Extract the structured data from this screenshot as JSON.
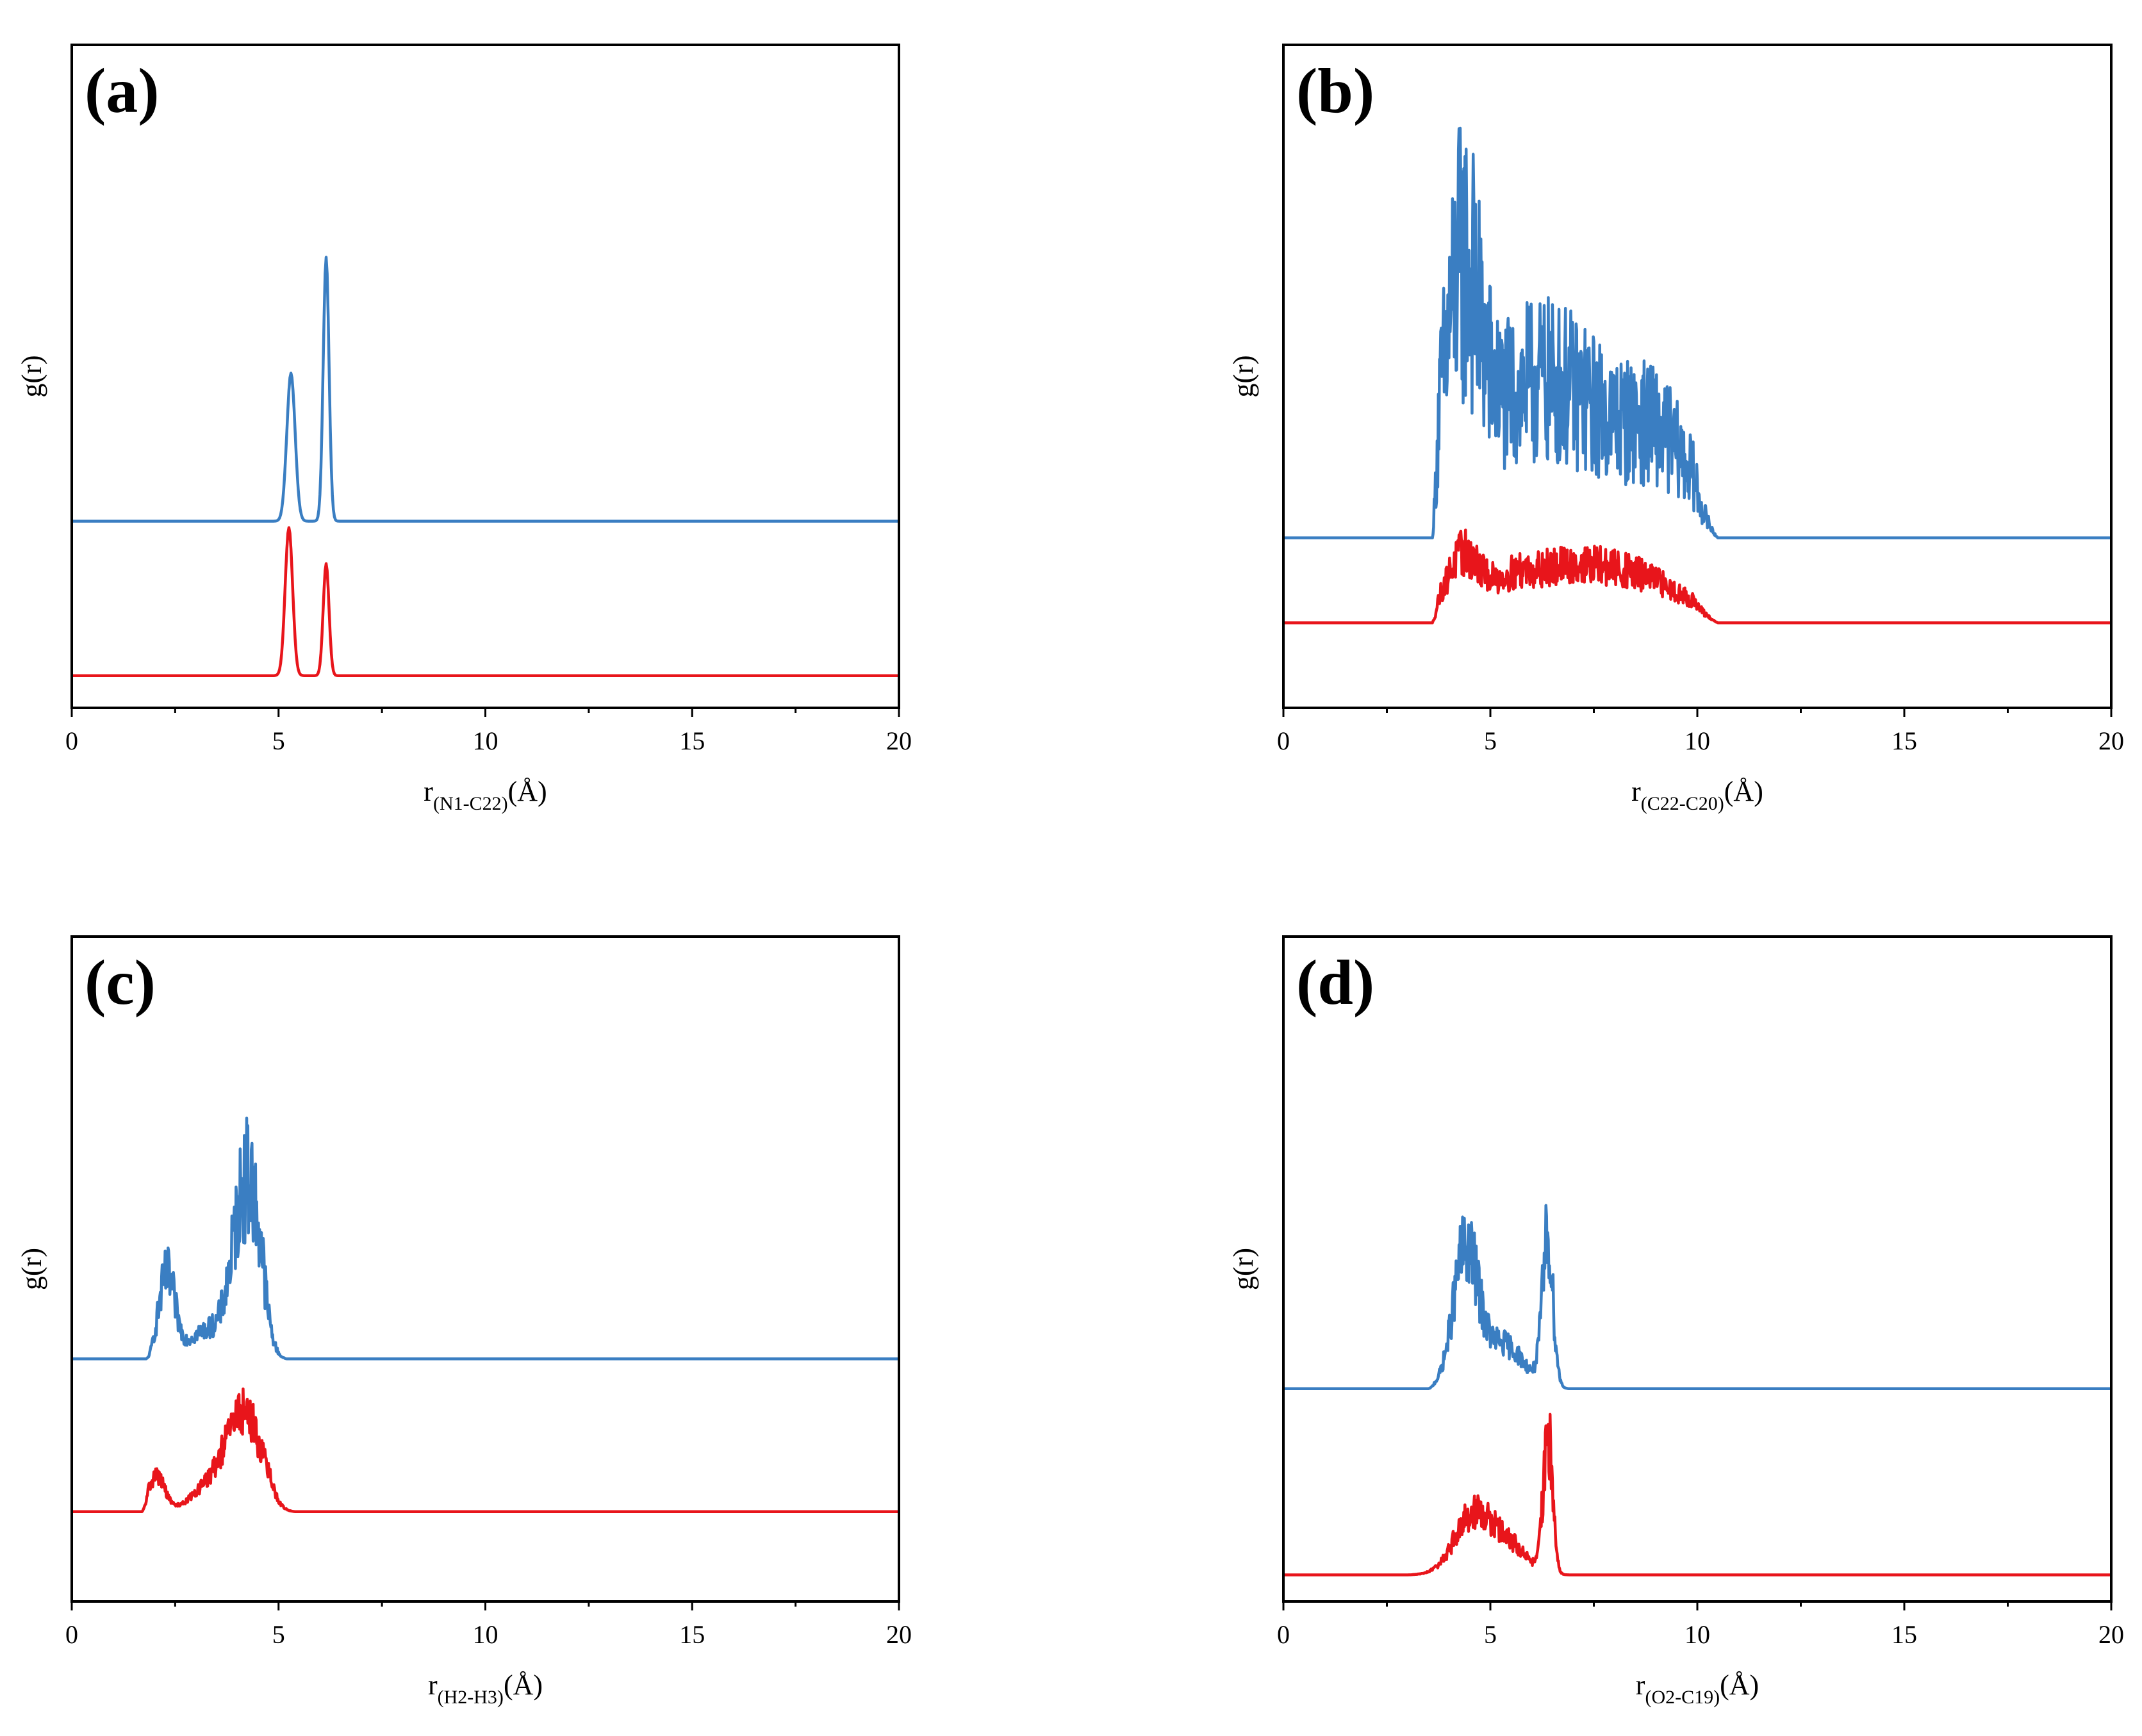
{
  "colors": {
    "blue": "#3A7EC2",
    "red": "#E8151B",
    "axis": "#000000"
  },
  "chart_data": [
    {
      "type": "line",
      "panel_label": "(a)",
      "title": "",
      "ylabel": "g(r)",
      "xlabel_main": "r",
      "xlabel_sub": "(N1-C22)",
      "xlabel_unit": "(Å)",
      "xlim": [
        0,
        20
      ],
      "x_ticks": [
        0,
        5,
        10,
        15,
        20
      ],
      "x_tick_labels": [
        "0",
        "5",
        "10",
        "15",
        "20"
      ],
      "ylim": [
        -0.25,
        4.9
      ],
      "grid": false,
      "legend": "none",
      "series": [
        {
          "name": "blue",
          "color": "#3A7EC2",
          "offset": 1.2,
          "range": [
            0,
            20
          ],
          "noise": 0,
          "peaks": [
            [
              5.3,
              1.15,
              0.1
            ],
            [
              6.15,
              2.05,
              0.07
            ]
          ]
        },
        {
          "name": "red",
          "color": "#E8151B",
          "offset": 0,
          "range": [
            0,
            20
          ],
          "noise": 0,
          "peaks": [
            [
              5.25,
              1.15,
              0.09
            ],
            [
              6.15,
              0.87,
              0.07
            ]
          ]
        }
      ]
    },
    {
      "type": "line",
      "panel_label": "(b)",
      "title": "",
      "ylabel": "g(r)",
      "xlabel_main": "r",
      "xlabel_sub": "(C22-C20)",
      "xlabel_unit": "(Å)",
      "xlim": [
        0,
        20
      ],
      "x_ticks": [
        0,
        5,
        10,
        15,
        20
      ],
      "x_tick_labels": [
        "0",
        "5",
        "10",
        "15",
        "20"
      ],
      "ylim": [
        -0.5,
        3.4
      ],
      "grid": false,
      "legend": "none",
      "series": [
        {
          "name": "blue",
          "color": "#3A7EC2",
          "offset": 0.5,
          "range": [
            3.6,
            10.5
          ],
          "noise": 0.55,
          "peaks": [
            [
              4.3,
              1.35,
              0.45
            ],
            [
              5.8,
              0.8,
              1.0
            ],
            [
              9.0,
              0.6,
              0.9
            ],
            [
              7.3,
              0.45,
              0.8
            ]
          ]
        },
        {
          "name": "red",
          "color": "#E8151B",
          "offset": 0,
          "range": [
            3.6,
            10.5
          ],
          "noise": 0.35,
          "peaks": [
            [
              4.3,
              0.35,
              0.4
            ],
            [
              5.5,
              0.22,
              0.7
            ],
            [
              8.3,
              0.28,
              1.3
            ],
            [
              6.8,
              0.15,
              0.8
            ]
          ]
        }
      ]
    },
    {
      "type": "line",
      "panel_label": "(c)",
      "title": "",
      "ylabel": "g(r)",
      "xlabel_main": "r",
      "xlabel_sub": "(H2-H3)",
      "xlabel_unit": "(Å)",
      "xlim": [
        0,
        20
      ],
      "x_ticks": [
        0,
        5,
        10,
        15,
        20
      ],
      "x_tick_labels": [
        "0",
        "5",
        "10",
        "15",
        "20"
      ],
      "ylim": [
        -0.5,
        3.2
      ],
      "grid": false,
      "legend": "none",
      "series": [
        {
          "name": "blue",
          "color": "#3A7EC2",
          "offset": 0.85,
          "range": [
            1.8,
            5.2
          ],
          "noise": 0.35,
          "peaks": [
            [
              2.3,
              0.45,
              0.2
            ],
            [
              4.25,
              1.0,
              0.35
            ],
            [
              3.2,
              0.15,
              0.4
            ]
          ]
        },
        {
          "name": "red",
          "color": "#E8151B",
          "offset": 0,
          "range": [
            1.7,
            5.4
          ],
          "noise": 0.25,
          "peaks": [
            [
              2.05,
              0.2,
              0.2
            ],
            [
              4.15,
              0.55,
              0.45
            ],
            [
              3.2,
              0.1,
              0.4
            ]
          ]
        }
      ]
    },
    {
      "type": "line",
      "panel_label": "(d)",
      "title": "",
      "ylabel": "g(r)",
      "xlabel_main": "r",
      "xlabel_sub": "(O2-C19)",
      "xlabel_unit": "(Å)",
      "xlim": [
        0,
        20
      ],
      "x_ticks": [
        0,
        5,
        10,
        15,
        20
      ],
      "x_tick_labels": [
        "0",
        "5",
        "10",
        "15",
        "20"
      ],
      "ylim": [
        -0.15,
        3.6
      ],
      "grid": false,
      "legend": "none",
      "series": [
        {
          "name": "blue",
          "color": "#3A7EC2",
          "offset": 1.05,
          "range": [
            3.5,
            7.0
          ],
          "noise": 0.3,
          "peaks": [
            [
              4.4,
              0.75,
              0.3
            ],
            [
              5.3,
              0.25,
              0.5
            ],
            [
              6.4,
              0.85,
              0.14
            ]
          ]
        },
        {
          "name": "red",
          "color": "#E8151B",
          "offset": 0,
          "range": [
            3.0,
            7.0
          ],
          "noise": 0.3,
          "peaks": [
            [
              4.6,
              0.35,
              0.45
            ],
            [
              5.5,
              0.15,
              0.4
            ],
            [
              6.4,
              0.8,
              0.12
            ]
          ]
        }
      ]
    }
  ]
}
